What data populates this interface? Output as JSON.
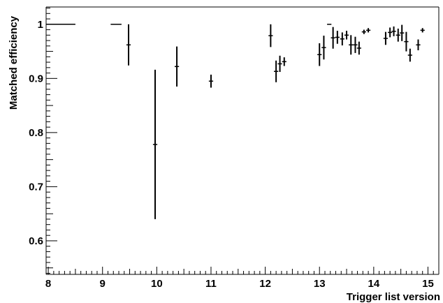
{
  "chart_data": {
    "type": "scatter",
    "xlabel": "Trigger list version",
    "ylabel": "Matched efficiency",
    "xlim": [
      7.96,
      15.2
    ],
    "ylim": [
      0.538,
      1.032
    ],
    "x_ticks": [
      "8",
      "9",
      "10",
      "11",
      "12",
      "13",
      "14",
      "15"
    ],
    "y_ticks": [
      "0.6",
      "0.7",
      "0.8",
      "0.9",
      "1"
    ],
    "grid": false,
    "points": [
      {
        "x": 8.23,
        "y": 1.0,
        "err_lo": 0.0,
        "err_hi": 0.0,
        "xerr": 0.27
      },
      {
        "x": 9.25,
        "y": 1.0,
        "err_lo": 0.0,
        "err_hi": 0.0,
        "xerr": 0.1
      },
      {
        "x": 9.48,
        "y": 0.962,
        "err_lo": 0.038,
        "err_hi": 0.038,
        "xerr": 0.04
      },
      {
        "x": 9.97,
        "y": 0.778,
        "err_lo": 0.138,
        "err_hi": 0.138,
        "xerr": 0.04
      },
      {
        "x": 10.37,
        "y": 0.922,
        "err_lo": 0.037,
        "err_hi": 0.037,
        "xerr": 0.04
      },
      {
        "x": 11.0,
        "y": 0.895,
        "err_lo": 0.012,
        "err_hi": 0.012,
        "xerr": 0.04
      },
      {
        "x": 12.1,
        "y": 0.979,
        "err_lo": 0.021,
        "err_hi": 0.021,
        "xerr": 0.04
      },
      {
        "x": 12.2,
        "y": 0.913,
        "err_lo": 0.02,
        "err_hi": 0.02,
        "xerr": 0.04
      },
      {
        "x": 12.27,
        "y": 0.927,
        "err_lo": 0.015,
        "err_hi": 0.015,
        "xerr": 0.04
      },
      {
        "x": 12.35,
        "y": 0.931,
        "err_lo": 0.008,
        "err_hi": 0.008,
        "xerr": 0.04
      },
      {
        "x": 13.0,
        "y": 0.944,
        "err_lo": 0.021,
        "err_hi": 0.021,
        "xerr": 0.04
      },
      {
        "x": 13.08,
        "y": 0.957,
        "err_lo": 0.022,
        "err_hi": 0.022,
        "xerr": 0.04
      },
      {
        "x": 13.18,
        "y": 1.0,
        "err_lo": 0.0,
        "err_hi": 0.0,
        "xerr": 0.04
      },
      {
        "x": 13.25,
        "y": 0.975,
        "err_lo": 0.02,
        "err_hi": 0.02,
        "xerr": 0.04
      },
      {
        "x": 13.33,
        "y": 0.976,
        "err_lo": 0.012,
        "err_hi": 0.012,
        "xerr": 0.04
      },
      {
        "x": 13.42,
        "y": 0.973,
        "err_lo": 0.012,
        "err_hi": 0.012,
        "xerr": 0.04
      },
      {
        "x": 13.5,
        "y": 0.98,
        "err_lo": 0.008,
        "err_hi": 0.008,
        "xerr": 0.04
      },
      {
        "x": 13.58,
        "y": 0.962,
        "err_lo": 0.018,
        "err_hi": 0.018,
        "xerr": 0.04
      },
      {
        "x": 13.66,
        "y": 0.962,
        "err_lo": 0.015,
        "err_hi": 0.015,
        "xerr": 0.04
      },
      {
        "x": 13.73,
        "y": 0.956,
        "err_lo": 0.012,
        "err_hi": 0.012,
        "xerr": 0.04
      },
      {
        "x": 13.82,
        "y": 0.986,
        "err_lo": 0.004,
        "err_hi": 0.004,
        "xerr": 0.04
      },
      {
        "x": 13.9,
        "y": 0.989,
        "err_lo": 0.004,
        "err_hi": 0.004,
        "xerr": 0.04
      },
      {
        "x": 14.22,
        "y": 0.974,
        "err_lo": 0.012,
        "err_hi": 0.012,
        "xerr": 0.04
      },
      {
        "x": 14.3,
        "y": 0.985,
        "err_lo": 0.009,
        "err_hi": 0.009,
        "xerr": 0.04
      },
      {
        "x": 14.37,
        "y": 0.987,
        "err_lo": 0.009,
        "err_hi": 0.009,
        "xerr": 0.04
      },
      {
        "x": 14.45,
        "y": 0.98,
        "err_lo": 0.012,
        "err_hi": 0.012,
        "xerr": 0.04
      },
      {
        "x": 14.52,
        "y": 0.984,
        "err_lo": 0.015,
        "err_hi": 0.015,
        "xerr": 0.04
      },
      {
        "x": 14.6,
        "y": 0.968,
        "err_lo": 0.018,
        "err_hi": 0.018,
        "xerr": 0.04
      },
      {
        "x": 14.67,
        "y": 0.943,
        "err_lo": 0.012,
        "err_hi": 0.012,
        "xerr": 0.04
      },
      {
        "x": 14.82,
        "y": 0.962,
        "err_lo": 0.01,
        "err_hi": 0.01,
        "xerr": 0.04
      },
      {
        "x": 14.9,
        "y": 0.989,
        "err_lo": 0.004,
        "err_hi": 0.004,
        "xerr": 0.04
      }
    ]
  }
}
